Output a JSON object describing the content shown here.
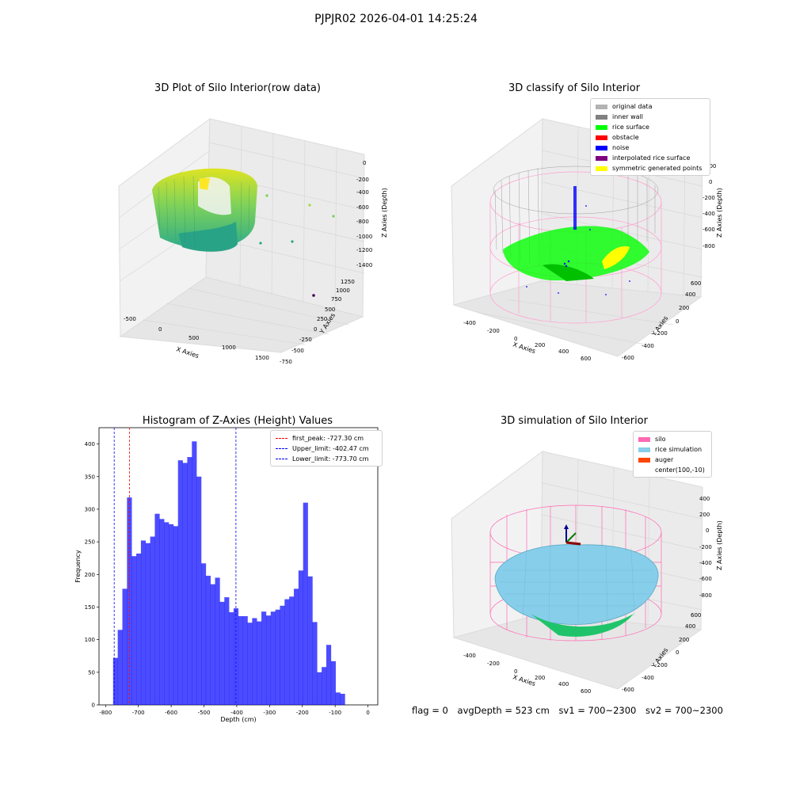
{
  "suptitle": "PJPJR02 2026-04-01 14:25:24",
  "panels": {
    "raw": {
      "title": "3D Plot of Silo Interior(row data)",
      "xlabel": "X Axies",
      "ylabel": "Y Axies",
      "zlabel": "Z Axies (Depth)",
      "xticks": [
        "-500",
        "0",
        "500",
        "1000",
        "1500"
      ],
      "yticks": [
        "-750",
        "-500",
        "-250",
        "0",
        "250",
        "500",
        "750",
        "1000",
        "1250"
      ],
      "zticks": [
        "0",
        "-200",
        "-400",
        "-600",
        "-800",
        "-1000",
        "-1200",
        "-1400"
      ]
    },
    "classify": {
      "title": "3D classify of Silo Interior",
      "xlabel": "X Axies",
      "ylabel": "Y Axies",
      "zlabel": "Z Axies (Depth)",
      "xticks": [
        "-400",
        "-200",
        "0",
        "200",
        "400",
        "600"
      ],
      "yticks": [
        "-600",
        "-400",
        "-200",
        "0",
        "200",
        "400",
        "600"
      ],
      "zticks": [
        "200",
        "0",
        "-200",
        "-400",
        "-600",
        "-800"
      ],
      "legend": [
        {
          "label": "original data",
          "color": "#b3b3b3"
        },
        {
          "label": "inner wall",
          "color": "#808080"
        },
        {
          "label": "rice surface",
          "color": "#00ff00"
        },
        {
          "label": "obstacle",
          "color": "#ff0000"
        },
        {
          "label": "noise",
          "color": "#0000ff"
        },
        {
          "label": "interpolated rice surface",
          "color": "#800080"
        },
        {
          "label": "symmetric generated points",
          "color": "#ffff00"
        }
      ]
    },
    "simulation": {
      "title": "3D simulation of Silo Interior",
      "xlabel": "X Axies",
      "ylabel": "Y Axies",
      "zlabel": "Z Axies (Depth)",
      "xticks": [
        "-400",
        "-200",
        "0",
        "200",
        "400",
        "600"
      ],
      "yticks": [
        "-600",
        "-400",
        "-200",
        "0",
        "200",
        "400",
        "600"
      ],
      "zticks": [
        "400",
        "200",
        "0",
        "-200",
        "-400",
        "-600",
        "-800"
      ],
      "legend": [
        {
          "label": "silo",
          "color": "#ff69b4"
        },
        {
          "label": "rice simulation",
          "color": "#87ceeb"
        },
        {
          "label": "auger",
          "color": "#ff4500"
        },
        {
          "label": "center(100,-10)",
          "color": ""
        }
      ]
    }
  },
  "footer": {
    "flag": "flag = 0",
    "avg": "avgDepth = 523 cm",
    "sv1": "sv1 = 700~2300",
    "sv2": "sv2 = 700~2300"
  },
  "chart_data": [
    {
      "type": "bar",
      "title": "Histogram of Z-Axies (Height) Values",
      "xlabel": "Depth (cm)",
      "ylabel": "Frequency",
      "xlim": [
        -820,
        30
      ],
      "ylim": [
        0,
        425
      ],
      "bin_width": 14.13,
      "bin_start": -777,
      "values": [
        72,
        115,
        178,
        318,
        228,
        232,
        252,
        248,
        258,
        293,
        285,
        280,
        277,
        274,
        375,
        371,
        380,
        404,
        350,
        217,
        198,
        185,
        195,
        158,
        165,
        142,
        148,
        136,
        136,
        126,
        133,
        128,
        143,
        137,
        143,
        146,
        152,
        162,
        166,
        178,
        206,
        310,
        197,
        127,
        50,
        58,
        92,
        67,
        19,
        17
      ],
      "bar_color": "#0000ff",
      "legend": [
        {
          "label": "first_peak: -727.30 cm",
          "color": "#ff0000",
          "x": -727.3
        },
        {
          "label": "Upper_limit: -402.47 cm",
          "color": "#0000ff",
          "x": -402.47
        },
        {
          "label": "Lower_limit: -773.70 cm",
          "color": "#0000ff",
          "x": -773.7
        }
      ],
      "xticks": [
        -800,
        -700,
        -600,
        -500,
        -400,
        -300,
        -200,
        -100,
        0
      ],
      "yticks": [
        0,
        50,
        100,
        150,
        200,
        250,
        300,
        350,
        400
      ]
    }
  ]
}
